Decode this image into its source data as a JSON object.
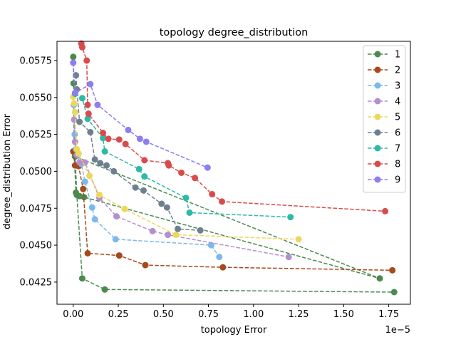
{
  "chart_data": {
    "type": "line",
    "title": "topology degree_distribution",
    "xlabel": "topology Error",
    "ylabel": "degree_distribution Error",
    "x_offset_label": "1e−5",
    "x_scale": 1e-05,
    "xlim": [
      -9e-07,
      1.87e-05
    ],
    "ylim": [
      0.041,
      0.0588
    ],
    "xticks": [
      0,
      2.5e-06,
      5e-06,
      7.5e-06,
      1e-05,
      1.25e-05,
      1.5e-05,
      1.75e-05
    ],
    "xtick_labels": [
      "0.00",
      "0.25",
      "0.50",
      "0.75",
      "1.00",
      "1.25",
      "1.50",
      "1.75"
    ],
    "yticks": [
      0.0425,
      0.045,
      0.0475,
      0.05,
      0.0525,
      0.055,
      0.0575
    ],
    "ytick_labels": [
      "0.0425",
      "0.0450",
      "0.0475",
      "0.0500",
      "0.0525",
      "0.0550",
      "0.0575"
    ],
    "grid": false,
    "legend_position": "top-right",
    "line_style": "dashed",
    "marker": "circle",
    "series": [
      {
        "name": "1",
        "color": "#4a8a4f",
        "x": [
          0.0,
          2e-08,
          5e-08,
          1.5e-07,
          3.5e-07,
          6e-07,
          1.7e-05,
          1e-07,
          2e-07,
          5e-07,
          1.75e-06,
          1.78e-05
        ],
        "y": [
          0.05775,
          0.05595,
          0.0513,
          0.04855,
          0.04832,
          0.04825,
          0.04275,
          0.051,
          0.0484,
          0.04275,
          0.042,
          0.04182
        ]
      },
      {
        "name": "2",
        "color": "#a54a1a",
        "x": [
          0.0,
          1e-07,
          3e-07,
          5.5e-07,
          8e-07,
          2.55e-06,
          4e-06,
          8.3e-06,
          1.77e-05
        ],
        "y": [
          0.05135,
          0.0504,
          0.05035,
          0.0488,
          0.04445,
          0.0443,
          0.04365,
          0.0435,
          0.0433
        ]
      },
      {
        "name": "3",
        "color": "#7bb8ee",
        "x": [
          3e-08,
          8e-08,
          1.5e-07,
          2.5e-07,
          4.5e-07,
          6.5e-07,
          1.05e-06,
          1.2e-06,
          2.35e-06,
          7.65e-06,
          8.1e-06
        ],
        "y": [
          0.0545,
          0.0525,
          0.0515,
          0.0511,
          0.0505,
          0.0493,
          0.04755,
          0.04675,
          0.0454,
          0.045,
          0.0442
        ]
      },
      {
        "name": "4",
        "color": "#b48fd0",
        "x": [
          5e-08,
          1e-07,
          2e-07,
          3.5e-07,
          6.5e-07,
          1.45e-06,
          2.4e-06,
          4.4e-06,
          5.25e-06,
          1.195e-05
        ],
        "y": [
          0.0535,
          0.052,
          0.0511,
          0.0506,
          0.0506,
          0.0482,
          0.04695,
          0.04595,
          0.0457,
          0.0442
        ]
      },
      {
        "name": "5",
        "color": "#eed85c",
        "x": [
          0.0,
          5e-08,
          1e-07,
          2e-07,
          3e-07,
          9e-07,
          1.45e-06,
          2.85e-06,
          5.7e-06,
          1.25e-05
        ],
        "y": [
          0.05505,
          0.0546,
          0.054,
          0.0515,
          0.0512,
          0.0497,
          0.0484,
          0.04745,
          0.0457,
          0.0454
        ]
      },
      {
        "name": "6",
        "color": "#6e8090",
        "x": [
          1.5e-07,
          2e-07,
          3.5e-07,
          9.5e-07,
          1.2e-06,
          1.5e-06,
          1.85e-06,
          2.25e-06,
          3.45e-06,
          3.9e-06,
          4.9e-06,
          5.2e-06,
          5.8e-06,
          7.05e-06
        ],
        "y": [
          0.0565,
          0.05555,
          0.05335,
          0.05265,
          0.0508,
          0.05055,
          0.0504,
          0.05,
          0.0489,
          0.0487,
          0.0478,
          0.04755,
          0.0461,
          0.046
        ]
      },
      {
        "name": "7",
        "color": "#2cbaa6",
        "x": [
          1e-07,
          5e-07,
          8e-07,
          1.65e-06,
          1.75e-06,
          3.65e-06,
          3.95e-06,
          6.25e-06,
          6.45e-06,
          1.205e-05
        ],
        "y": [
          0.05525,
          0.05495,
          0.05355,
          0.05225,
          0.05135,
          0.05015,
          0.04965,
          0.0482,
          0.0472,
          0.0469
        ]
      },
      {
        "name": "8",
        "color": "#d94b4b",
        "x": [
          4.5e-07,
          5e-07,
          7.5e-07,
          8e-07,
          8.5e-07,
          1.65e-06,
          1.95e-06,
          2.55e-06,
          2.9e-06,
          3.95e-06,
          5.25e-06,
          5.3e-06,
          6e-06,
          6.75e-06,
          7.7e-06,
          8.25e-06,
          1.73e-05
        ],
        "y": [
          0.05865,
          0.0584,
          0.0575,
          0.0545,
          0.0539,
          0.0526,
          0.0522,
          0.05215,
          0.05185,
          0.05075,
          0.05055,
          0.0504,
          0.0499,
          0.04955,
          0.04845,
          0.04795,
          0.0473
        ]
      },
      {
        "name": "9",
        "color": "#8c7ef0",
        "x": [
          0.0,
          1e-07,
          9.5e-07,
          1.35e-06,
          3.05e-06,
          3.7e-06,
          4.05e-06,
          7.45e-06
        ],
        "y": [
          0.05735,
          0.0553,
          0.0559,
          0.0545,
          0.0528,
          0.0522,
          0.052,
          0.05025
        ]
      }
    ]
  }
}
